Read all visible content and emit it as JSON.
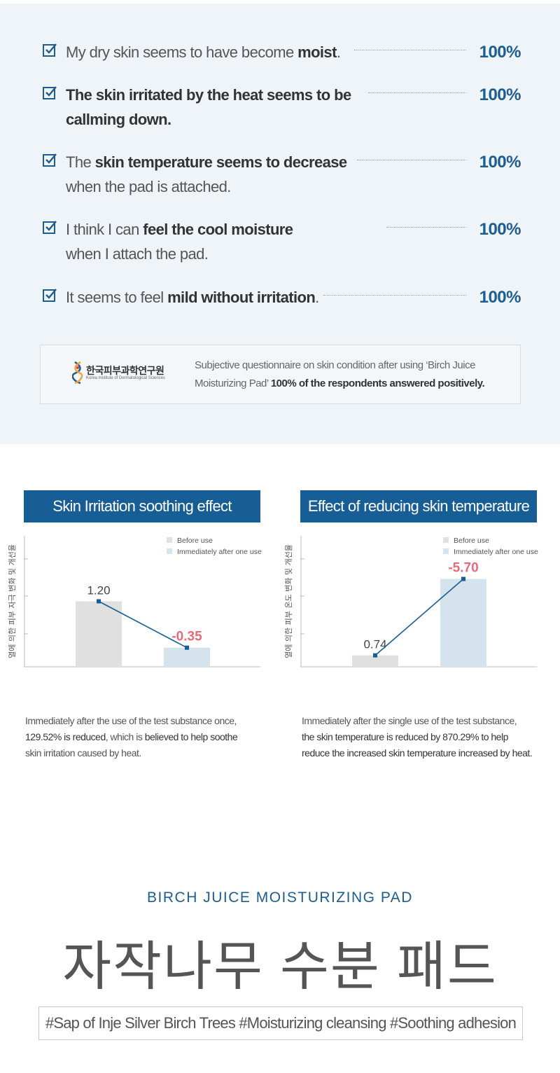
{
  "survey": {
    "items": [
      {
        "text_pre": "My dry skin seems to have become ",
        "text_bold": "moist",
        "text_post": ".",
        "percent": "100%"
      },
      {
        "line1_bold": "The skin irritated by the heat seems to be",
        "line2_bold": "callming down.",
        "percent": "100%"
      },
      {
        "line1_pre": "The ",
        "line1_bold": "skin temperature seems to decrease",
        "line2": "when the pad is attached.",
        "percent": "100%"
      },
      {
        "line1_pre": "I think I can ",
        "line1_bold": "feel the cool moisture",
        "line2": "when I attach the pad.",
        "percent": "100%"
      },
      {
        "text_pre": "It seems to feel ",
        "text_bold": "mild without irritation",
        "text_post": ".",
        "percent": "100%"
      }
    ],
    "institute": {
      "name_ko": "한국피부과학연구원",
      "name_en": "Korea Institute of Dermatological Sciences"
    },
    "note_line1": "Subjective questionnaire on skin condition after using ‘Birch Juice",
    "note_line2_pre": "Moisturizing Pad’ ",
    "note_line2_bold": "100% of the respondents answered positively."
  },
  "colors": {
    "accent": "#175e96",
    "percent": "#1e5d8f",
    "before_bar": "#e0e0e0",
    "after_bar": "#d5e3ec",
    "negative_label": "#e8697a",
    "background_tint": "#eef4f8"
  },
  "chart_data": [
    {
      "type": "bar",
      "title_pre": "Skin Irritation ",
      "title_bold": "soothing",
      "title_post": " effect",
      "ylabel": "열에 의한 피부 자극 변화 및 개선율",
      "xlabel": "",
      "legend": [
        "Before use",
        "Immediately after one use"
      ],
      "legend_position": "top-right",
      "categories": [
        "Before use",
        "Immediately after one use"
      ],
      "values": [
        1.2,
        -0.35
      ],
      "value_labels": [
        "1.20",
        "-0.35"
      ],
      "ylim": [
        -0.8,
        1.6
      ],
      "caption_line1": "Immediately after the use of the test substance once,",
      "caption_line2_bold": "129.52% is reduced",
      "caption_line2_mid": ", which is ",
      "caption_line2_bold2": "believed to help soothe",
      "caption_line3": "skin irritation caused by heat."
    },
    {
      "type": "bar",
      "title_pre": "Effect of ",
      "title_bold": "reducing skin temperature",
      "title_post": "",
      "ylabel": "열에 의한 피부 온도 변화 및 개선율",
      "xlabel": "",
      "legend": [
        "Before use",
        "Immediately after one use"
      ],
      "legend_position": "top-right",
      "categories": [
        "Before use",
        "Immediately after one use"
      ],
      "values": [
        0.74,
        -5.7
      ],
      "value_labels": [
        "0.74",
        "-5.70"
      ],
      "ylim": [
        -7.5,
        1.0
      ],
      "caption_line1": "Immediately after the single use of the test substance,",
      "caption_line2": "the skin temperature is reduced by 870.29% to help",
      "caption_line3": "reduce the increased skin temperature increased by heat."
    }
  ],
  "product": {
    "name_en": "BIRCH JUICE MOISTURIZING PAD",
    "name_ko": "자작나무 수분 패드",
    "hashtags": "#Sap of Inje Silver Birch Trees #Moisturizing cleansing  #Soothing adhesion"
  }
}
